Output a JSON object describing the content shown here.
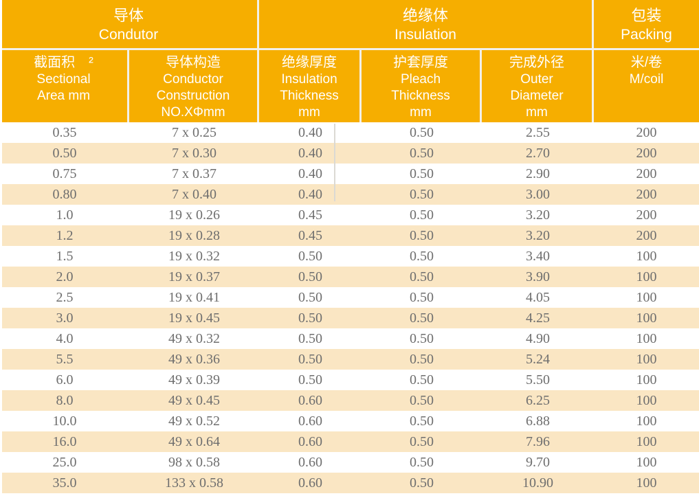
{
  "colors": {
    "header_bg": "#F6AE00",
    "row_alt_bg": "#FAE6C3",
    "divider": "#F2F0E9",
    "header_text": "#FFFFFF",
    "data_text": "#6E6E6E"
  },
  "header": {
    "groups": [
      {
        "zh": "导体",
        "en": "Condutor"
      },
      {
        "zh": "绝缘体",
        "en": "Insulation"
      },
      {
        "zh": "包装",
        "en": "Packing"
      }
    ],
    "columns": [
      {
        "lines": [
          "截面积　²",
          "Sectional",
          "Area mm"
        ]
      },
      {
        "lines": [
          "导体构造",
          "Conductor",
          "Construction",
          "NO.XΦmm"
        ]
      },
      {
        "lines": [
          "绝缘厚度",
          "Insulation",
          "Thickness",
          "mm"
        ]
      },
      {
        "lines": [
          "护套厚度",
          "Pleach",
          "Thickness",
          "mm"
        ]
      },
      {
        "lines": [
          "完成外径",
          "Outer",
          "Diameter",
          "mm"
        ]
      },
      {
        "lines": [
          "米/卷",
          "M/coil"
        ]
      }
    ]
  },
  "rows": [
    [
      "0.35",
      "7 x 0.25",
      "0.40",
      "0.50",
      "2.55",
      "200"
    ],
    [
      "0.50",
      "7 x 0.30",
      "0.40",
      "0.50",
      "2.70",
      "200"
    ],
    [
      "0.75",
      "7 x 0.37",
      "0.40",
      "0.50",
      "2.90",
      "200"
    ],
    [
      "0.80",
      "7 x 0.40",
      "0.40",
      "0.50",
      "3.00",
      "200"
    ],
    [
      "1.0",
      "19 x 0.26",
      "0.45",
      "0.50",
      "3.20",
      "200"
    ],
    [
      "1.2",
      "19 x 0.28",
      "0.45",
      "0.50",
      "3.20",
      "200"
    ],
    [
      "1.5",
      "19 x 0.32",
      "0.50",
      "0.50",
      "3.40",
      "100"
    ],
    [
      "2.0",
      "19 x 0.37",
      "0.50",
      "0.50",
      "3.90",
      "100"
    ],
    [
      "2.5",
      "19 x 0.41",
      "0.50",
      "0.50",
      "4.05",
      "100"
    ],
    [
      "3.0",
      "19 x 0.45",
      "0.50",
      "0.50",
      "4.25",
      "100"
    ],
    [
      "4.0",
      "49 x 0.32",
      "0.50",
      "0.50",
      "4.90",
      "100"
    ],
    [
      "5.5",
      "49 x 0.36",
      "0.50",
      "0.50",
      "5.24",
      "100"
    ],
    [
      "6.0",
      "49 x 0.39",
      "0.50",
      "0.50",
      "5.50",
      "100"
    ],
    [
      "8.0",
      "49 x 0.45",
      "0.60",
      "0.50",
      "6.25",
      "100"
    ],
    [
      "10.0",
      "49 x 0.52",
      "0.60",
      "0.50",
      "6.88",
      "100"
    ],
    [
      "16.0",
      "49 x 0.64",
      "0.60",
      "0.50",
      "7.96",
      "100"
    ],
    [
      "25.0",
      "98 x 0.58",
      "0.60",
      "0.50",
      "9.70",
      "100"
    ],
    [
      "35.0",
      "133 x 0.58",
      "0.60",
      "0.50",
      "10.90",
      "100"
    ]
  ]
}
